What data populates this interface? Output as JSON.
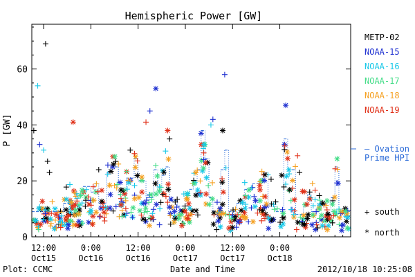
{
  "chart_data": {
    "type": "scatter",
    "title": "Hemispheric Power [GW]",
    "ylabel": "P [GW]",
    "xlabel": "Date and Time",
    "ylim": [
      0,
      76
    ],
    "yticks": [
      0,
      20,
      40,
      60
    ],
    "xlim_hours": [
      -3,
      78
    ],
    "xticks": [
      {
        "h": 0,
        "line1": "12:00",
        "line2": "Oct15"
      },
      {
        "h": 12,
        "line1": "0:00",
        "line2": "Oct16"
      },
      {
        "h": 24,
        "line1": "12:00",
        "line2": "Oct16"
      },
      {
        "h": 36,
        "line1": "0:00",
        "line2": "Oct17"
      },
      {
        "h": 48,
        "line1": "12:00",
        "line2": "Oct17"
      },
      {
        "h": 60,
        "line1": "0:00",
        "line2": "Oct18"
      }
    ],
    "legend": [
      "METP-02",
      "NOAA-15",
      "NOAA-16",
      "NOAA-17",
      "NOAA-18",
      "NOAA-19"
    ],
    "colors": {
      "METP-02": "#000000",
      "NOAA-15": "#1d2fd0",
      "NOAA-16": "#18c8e8",
      "NOAA-17": "#44dd88",
      "NOAA-18": "#f5a020",
      "NOAA-19": "#e03018",
      "ovation": "#2a6ad8"
    },
    "ovation_label": [
      "— Ovation",
      "Prime HPI"
    ],
    "marker_legend": [
      {
        "symbol": "+",
        "label": "south"
      },
      {
        "symbol": "*",
        "label": "north"
      }
    ],
    "notable_points": [
      {
        "sat": "METP-02",
        "hemi": "south",
        "x": -2.5,
        "y": 38
      },
      {
        "sat": "METP-02",
        "hemi": "south",
        "x": 0.5,
        "y": 69
      },
      {
        "sat": "NOAA-16",
        "hemi": "south",
        "x": -1.5,
        "y": 54
      },
      {
        "sat": "NOAA-15",
        "hemi": "south",
        "x": -1.0,
        "y": 33
      },
      {
        "sat": "NOAA-16",
        "hemi": "south",
        "x": 0.0,
        "y": 31
      },
      {
        "sat": "METP-02",
        "hemi": "south",
        "x": 1.0,
        "y": 27
      },
      {
        "sat": "METP-02",
        "hemi": "south",
        "x": 1.5,
        "y": 23
      },
      {
        "sat": "NOAA-19",
        "hemi": "north",
        "x": 7.5,
        "y": 41
      },
      {
        "sat": "METP-02",
        "hemi": "south",
        "x": 14.0,
        "y": 24
      },
      {
        "sat": "METP-02",
        "hemi": "south",
        "x": 22.0,
        "y": 31
      },
      {
        "sat": "NOAA-15",
        "hemi": "north",
        "x": 28.5,
        "y": 53
      },
      {
        "sat": "NOAA-15",
        "hemi": "south",
        "x": 27.0,
        "y": 45
      },
      {
        "sat": "NOAA-19",
        "hemi": "south",
        "x": 26.0,
        "y": 41
      },
      {
        "sat": "NOAA-19",
        "hemi": "north",
        "x": 31.5,
        "y": 38
      },
      {
        "sat": "METP-02",
        "hemi": "south",
        "x": 32.0,
        "y": 35
      },
      {
        "sat": "NOAA-15",
        "hemi": "north",
        "x": 40.0,
        "y": 37
      },
      {
        "sat": "NOAA-15",
        "hemi": "south",
        "x": 43.0,
        "y": 42
      },
      {
        "sat": "NOAA-16",
        "hemi": "south",
        "x": 42.5,
        "y": 40
      },
      {
        "sat": "NOAA-15",
        "hemi": "south",
        "x": 46.0,
        "y": 58
      },
      {
        "sat": "METP-02",
        "hemi": "north",
        "x": 45.5,
        "y": 38
      },
      {
        "sat": "NOAA-15",
        "hemi": "north",
        "x": 61.5,
        "y": 47
      },
      {
        "sat": "NOAA-19",
        "hemi": "south",
        "x": 64.5,
        "y": 29
      },
      {
        "sat": "NOAA-19",
        "hemi": "north",
        "x": 62.0,
        "y": 28
      },
      {
        "sat": "METP-02",
        "hemi": "south",
        "x": 65.0,
        "y": 23
      },
      {
        "sat": "METP-02",
        "hemi": "north",
        "x": 60.5,
        "y": 22
      }
    ],
    "ovation_steps": [
      [
        -3,
        9
      ],
      [
        3,
        9
      ],
      [
        5,
        12
      ],
      [
        8,
        15
      ],
      [
        10,
        18
      ],
      [
        12,
        16
      ],
      [
        13,
        19
      ],
      [
        14,
        12
      ],
      [
        16,
        23
      ],
      [
        17,
        25
      ],
      [
        19,
        15
      ],
      [
        21,
        21
      ],
      [
        23,
        28
      ],
      [
        24,
        20
      ],
      [
        26,
        14
      ],
      [
        28,
        24
      ],
      [
        29,
        16
      ],
      [
        30,
        22
      ],
      [
        31,
        25
      ],
      [
        32,
        13
      ],
      [
        34,
        11
      ],
      [
        36,
        14
      ],
      [
        37,
        17
      ],
      [
        38,
        20
      ],
      [
        39,
        24
      ],
      [
        40,
        38
      ],
      [
        41,
        28
      ],
      [
        42,
        14
      ],
      [
        43,
        9
      ],
      [
        45,
        24
      ],
      [
        46,
        31
      ],
      [
        47,
        9
      ],
      [
        49,
        12
      ],
      [
        51,
        17
      ],
      [
        53,
        19
      ],
      [
        55,
        20
      ],
      [
        57,
        11
      ],
      [
        59,
        9
      ],
      [
        61,
        35
      ],
      [
        62,
        24
      ],
      [
        64,
        8
      ],
      [
        66,
        11
      ],
      [
        67,
        15
      ],
      [
        68,
        9
      ],
      [
        70,
        12
      ],
      [
        72,
        8
      ],
      [
        73,
        14
      ],
      [
        74,
        25
      ],
      [
        75,
        9
      ],
      [
        78,
        9
      ]
    ]
  },
  "footer": {
    "left": "Plot: CCMC",
    "center": "Date and Time",
    "right": "2012/10/18 10:25:08"
  }
}
